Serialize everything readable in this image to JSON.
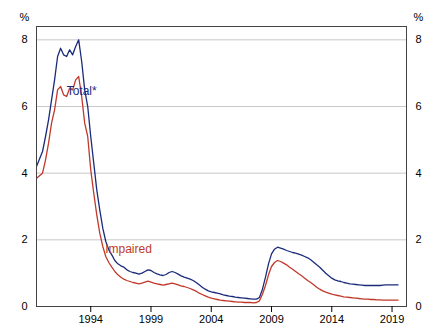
{
  "chart_data": {
    "type": "line",
    "ylabel": "%",
    "y2label": "%",
    "xlim": [
      1989.5,
      2020.2
    ],
    "xticks": [
      1994,
      1999,
      2004,
      2009,
      2014,
      2019
    ],
    "ylim": [
      0,
      8.4
    ],
    "yticks": [
      0,
      2,
      4,
      6,
      8
    ],
    "grid": true,
    "x": [
      1989.5,
      1990.0,
      1990.25,
      1990.5,
      1990.75,
      1991.0,
      1991.25,
      1991.5,
      1991.75,
      1992.0,
      1992.25,
      1992.5,
      1992.75,
      1993.0,
      1993.25,
      1993.5,
      1993.75,
      1994.0,
      1994.25,
      1994.5,
      1994.75,
      1995.0,
      1995.25,
      1995.5,
      1995.75,
      1996.0,
      1996.25,
      1996.5,
      1996.75,
      1997.0,
      1997.25,
      1997.5,
      1997.75,
      1998.0,
      1998.25,
      1998.5,
      1998.75,
      1999.0,
      1999.25,
      1999.5,
      1999.75,
      2000.0,
      2000.25,
      2000.5,
      2000.75,
      2001.0,
      2001.25,
      2001.5,
      2001.75,
      2002.0,
      2002.25,
      2002.5,
      2002.75,
      2003.0,
      2003.25,
      2003.5,
      2003.75,
      2004.0,
      2004.25,
      2004.5,
      2004.75,
      2005.0,
      2005.25,
      2005.5,
      2005.75,
      2006.0,
      2006.25,
      2006.5,
      2006.75,
      2007.0,
      2007.25,
      2007.5,
      2007.75,
      2008.0,
      2008.25,
      2008.5,
      2008.75,
      2009.0,
      2009.25,
      2009.5,
      2009.75,
      2010.0,
      2010.25,
      2010.5,
      2010.75,
      2011.0,
      2011.25,
      2011.5,
      2011.75,
      2012.0,
      2012.25,
      2012.5,
      2012.75,
      2013.0,
      2013.25,
      2013.5,
      2013.75,
      2014.0,
      2014.25,
      2014.5,
      2014.75,
      2015.0,
      2015.25,
      2015.5,
      2015.75,
      2016.0,
      2016.25,
      2016.5,
      2016.75,
      2017.0,
      2017.25,
      2017.5,
      2017.75,
      2018.0,
      2018.25,
      2018.5,
      2018.75,
      2019.0,
      2019.5
    ],
    "series": [
      {
        "name": "Total*",
        "color": "#1a2b7a",
        "values": [
          4.2,
          4.65,
          5.1,
          5.6,
          6.2,
          6.8,
          7.5,
          7.75,
          7.55,
          7.5,
          7.7,
          7.55,
          7.8,
          8.0,
          7.35,
          6.5,
          6.0,
          5.1,
          4.3,
          3.5,
          2.9,
          2.35,
          1.95,
          1.7,
          1.55,
          1.38,
          1.28,
          1.22,
          1.18,
          1.1,
          1.05,
          1.02,
          1.0,
          0.97,
          1.0,
          1.05,
          1.1,
          1.08,
          1.02,
          0.98,
          0.95,
          0.93,
          0.96,
          1.02,
          1.05,
          1.02,
          0.97,
          0.92,
          0.88,
          0.85,
          0.82,
          0.78,
          0.72,
          0.65,
          0.58,
          0.52,
          0.47,
          0.44,
          0.42,
          0.4,
          0.38,
          0.35,
          0.33,
          0.31,
          0.3,
          0.28,
          0.27,
          0.26,
          0.25,
          0.24,
          0.23,
          0.22,
          0.22,
          0.27,
          0.52,
          0.88,
          1.28,
          1.58,
          1.72,
          1.78,
          1.75,
          1.72,
          1.68,
          1.65,
          1.62,
          1.6,
          1.57,
          1.54,
          1.5,
          1.46,
          1.4,
          1.33,
          1.25,
          1.18,
          1.09,
          1.0,
          0.92,
          0.85,
          0.8,
          0.77,
          0.75,
          0.72,
          0.7,
          0.68,
          0.67,
          0.66,
          0.65,
          0.64,
          0.63,
          0.63,
          0.63,
          0.63,
          0.63,
          0.63,
          0.64,
          0.65,
          0.65,
          0.65,
          0.65
        ]
      },
      {
        "name": "Impaired",
        "color": "#c0392b",
        "values": [
          3.85,
          4.0,
          4.4,
          4.9,
          5.5,
          5.9,
          6.5,
          6.6,
          6.35,
          6.3,
          6.55,
          6.5,
          6.8,
          6.9,
          6.3,
          5.5,
          5.1,
          4.1,
          3.4,
          2.75,
          2.2,
          1.8,
          1.5,
          1.32,
          1.18,
          1.05,
          0.95,
          0.88,
          0.82,
          0.78,
          0.75,
          0.72,
          0.7,
          0.68,
          0.7,
          0.73,
          0.76,
          0.73,
          0.7,
          0.68,
          0.66,
          0.64,
          0.66,
          0.68,
          0.7,
          0.68,
          0.65,
          0.62,
          0.6,
          0.57,
          0.54,
          0.5,
          0.46,
          0.4,
          0.36,
          0.32,
          0.28,
          0.25,
          0.23,
          0.21,
          0.19,
          0.18,
          0.17,
          0.16,
          0.15,
          0.14,
          0.13,
          0.13,
          0.12,
          0.12,
          0.12,
          0.11,
          0.12,
          0.17,
          0.37,
          0.63,
          0.95,
          1.2,
          1.32,
          1.38,
          1.35,
          1.3,
          1.25,
          1.18,
          1.12,
          1.05,
          0.98,
          0.92,
          0.85,
          0.78,
          0.72,
          0.65,
          0.58,
          0.52,
          0.47,
          0.43,
          0.4,
          0.37,
          0.35,
          0.33,
          0.31,
          0.29,
          0.28,
          0.27,
          0.26,
          0.25,
          0.24,
          0.23,
          0.22,
          0.22,
          0.21,
          0.21,
          0.2,
          0.2,
          0.19,
          0.19,
          0.19,
          0.19,
          0.19
        ]
      }
    ],
    "annotations": [
      {
        "text": "Total*",
        "x": 1992.0,
        "y": 6.35,
        "color": "#1a2b7a"
      },
      {
        "text": "Impaired",
        "x": 1995.2,
        "y": 1.62,
        "color": "#c0392b"
      }
    ]
  }
}
